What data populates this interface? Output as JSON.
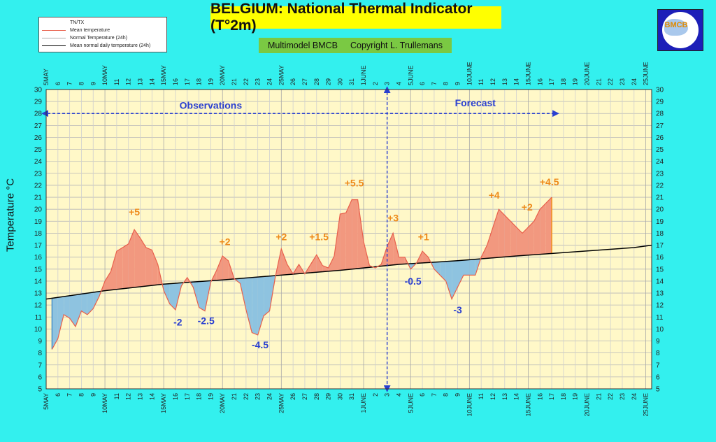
{
  "title": "BELGIUM: National Thermal Indicator (T°2m)",
  "subtitle": {
    "model": "Multimodel BMCB",
    "copyright": "Copyright L. Trullemans"
  },
  "legend": {
    "title": "TN/TX",
    "items": [
      {
        "label": "Mean temperature",
        "color": "#e8604c"
      },
      {
        "label": "Normal Temperature (24h)",
        "color": "#aaaaaa"
      },
      {
        "label": "Mean normal daily temperature (24h)",
        "color": "#000000"
      }
    ]
  },
  "logo": {
    "text": "BMCB"
  },
  "chart_data": {
    "type": "area",
    "ylabel": "Temperature °C",
    "ylim": [
      5,
      30
    ],
    "xlim": [
      5.0,
      56.5
    ],
    "grid": true,
    "x_tick_labels": [
      "5MAY",
      "6",
      "7",
      "8",
      "9",
      "10MAY",
      "11",
      "12",
      "13",
      "14",
      "15MAY",
      "16",
      "17",
      "18",
      "19",
      "20MAY",
      "21",
      "22",
      "23",
      "24",
      "25MAY",
      "26",
      "27",
      "28",
      "29",
      "30",
      "31",
      "1JUNE",
      "2",
      "3",
      "4",
      "5JUNE",
      "6",
      "7",
      "8",
      "9",
      "10JUNE",
      "11",
      "12",
      "13",
      "14",
      "15JUNE",
      "16",
      "17",
      "18",
      "19",
      "20JUNE",
      "21",
      "22",
      "23",
      "24",
      "25JUNE"
    ],
    "y_ticks": [
      5,
      6,
      7,
      8,
      9,
      10,
      11,
      12,
      13,
      14,
      15,
      16,
      17,
      18,
      19,
      20,
      21,
      22,
      23,
      24,
      25,
      26,
      27,
      28,
      29,
      30
    ],
    "series": [
      {
        "name": "Mean temperature",
        "color": "#e8604c",
        "points": [
          [
            5.5,
            8.3
          ],
          [
            6,
            9.2
          ],
          [
            6.5,
            11.2
          ],
          [
            7,
            10.9
          ],
          [
            7.5,
            10.2
          ],
          [
            8,
            11.5
          ],
          [
            8.5,
            11.2
          ],
          [
            9,
            11.7
          ],
          [
            9.5,
            12.7
          ],
          [
            10,
            14.0
          ],
          [
            10.5,
            14.8
          ],
          [
            11,
            16.5
          ],
          [
            11.5,
            16.8
          ],
          [
            12,
            17.1
          ],
          [
            12.5,
            18.3
          ],
          [
            13,
            17.6
          ],
          [
            13.5,
            16.8
          ],
          [
            14,
            16.6
          ],
          [
            14.5,
            15.4
          ],
          [
            15,
            13.2
          ],
          [
            15.5,
            12.1
          ],
          [
            16,
            11.6
          ],
          [
            16.5,
            13.6
          ],
          [
            17,
            14.3
          ],
          [
            17.5,
            13.5
          ],
          [
            18,
            11.8
          ],
          [
            18.5,
            11.5
          ],
          [
            19,
            13.9
          ],
          [
            19.5,
            14.9
          ],
          [
            20,
            16.1
          ],
          [
            20.5,
            15.7
          ],
          [
            21,
            14.2
          ],
          [
            21.5,
            13.8
          ],
          [
            22,
            11.6
          ],
          [
            22.5,
            9.7
          ],
          [
            23,
            9.5
          ],
          [
            23.5,
            11.1
          ],
          [
            24,
            11.5
          ],
          [
            24.5,
            14.4
          ],
          [
            25,
            16.7
          ],
          [
            25.5,
            15.4
          ],
          [
            26,
            14.6
          ],
          [
            26.5,
            15.4
          ],
          [
            27,
            14.6
          ],
          [
            27.5,
            15.4
          ],
          [
            28,
            16.2
          ],
          [
            28.5,
            15.3
          ],
          [
            29,
            15.1
          ],
          [
            29.5,
            16.1
          ],
          [
            30,
            19.6
          ],
          [
            30.5,
            19.7
          ],
          [
            31,
            20.8
          ],
          [
            31.5,
            20.8
          ],
          [
            32,
            17.3
          ],
          [
            32.5,
            15.3
          ],
          [
            33,
            15.1
          ],
          [
            33.5,
            15.4
          ],
          [
            34,
            16.9
          ],
          [
            34.5,
            18.0
          ],
          [
            35,
            16.0
          ],
          [
            35.5,
            16.0
          ],
          [
            36,
            15.0
          ],
          [
            36.5,
            15.5
          ],
          [
            37,
            16.5
          ],
          [
            37.5,
            16.0
          ],
          [
            38,
            15.0
          ],
          [
            38.5,
            14.5
          ],
          [
            39,
            14.0
          ],
          [
            39.5,
            12.5
          ],
          [
            40,
            13.5
          ],
          [
            40.5,
            14.5
          ],
          [
            41,
            14.5
          ],
          [
            41.5,
            14.5
          ],
          [
            42,
            16.0
          ],
          [
            42.5,
            17.0
          ],
          [
            43,
            18.5
          ],
          [
            43.5,
            20.0
          ],
          [
            44,
            19.5
          ],
          [
            44.5,
            19.0
          ],
          [
            45,
            18.5
          ],
          [
            45.5,
            18.0
          ],
          [
            46,
            18.5
          ],
          [
            46.5,
            19.0
          ],
          [
            47,
            20.0
          ],
          [
            47.5,
            20.5
          ],
          [
            48,
            21.0
          ]
        ]
      },
      {
        "name": "Mean normal daily temperature (24h)",
        "color": "#000000",
        "points": [
          [
            5,
            12.5
          ],
          [
            10,
            13.2
          ],
          [
            15,
            13.75
          ],
          [
            20,
            14.1
          ],
          [
            25,
            14.5
          ],
          [
            30,
            14.9
          ],
          [
            33,
            15.2
          ],
          [
            35,
            15.4
          ],
          [
            40,
            15.7
          ],
          [
            45,
            16.1
          ],
          [
            50,
            16.45
          ],
          [
            55,
            16.8
          ],
          [
            56.5,
            17.0
          ]
        ]
      }
    ],
    "annotations": [
      {
        "text": "+5",
        "x": 12.5,
        "y": 19.5,
        "color": "#ee8a1a"
      },
      {
        "text": "-2",
        "x": 16.2,
        "y": 10.3,
        "color": "#2a3fd0"
      },
      {
        "text": "-2.5",
        "x": 18.6,
        "y": 10.4,
        "color": "#2a3fd0"
      },
      {
        "text": "+2",
        "x": 20.2,
        "y": 17.0,
        "color": "#ee8a1a"
      },
      {
        "text": "-4.5",
        "x": 23.2,
        "y": 8.4,
        "color": "#2a3fd0"
      },
      {
        "text": "+2",
        "x": 25.0,
        "y": 17.4,
        "color": "#ee8a1a"
      },
      {
        "text": "+1.5",
        "x": 28.2,
        "y": 17.4,
        "color": "#ee8a1a"
      },
      {
        "text": "+5.5",
        "x": 31.2,
        "y": 21.9,
        "color": "#ee8a1a"
      },
      {
        "text": "+3",
        "x": 34.5,
        "y": 19.0,
        "color": "#ee8a1a"
      },
      {
        "text": "+1",
        "x": 37.1,
        "y": 17.4,
        "color": "#ee8a1a"
      },
      {
        "text": "-0.5",
        "x": 36.2,
        "y": 13.7,
        "color": "#2a3fd0"
      },
      {
        "text": "-3",
        "x": 40.0,
        "y": 11.3,
        "color": "#2a3fd0"
      },
      {
        "text": "+4",
        "x": 43.1,
        "y": 20.9,
        "color": "#ee8a1a"
      },
      {
        "text": "+2",
        "x": 45.9,
        "y": 19.9,
        "color": "#ee8a1a"
      },
      {
        "text": "+4.5",
        "x": 47.8,
        "y": 22.0,
        "color": "#ee8a1a"
      }
    ],
    "regions": [
      {
        "label": "Observations",
        "x": 19.0,
        "y": 28.4,
        "color": "#2a3fd0"
      },
      {
        "label": "Forecast",
        "x": 41.5,
        "y": 28.6,
        "color": "#2a3fd0"
      }
    ],
    "divider_x": 34.0,
    "arrow_span": [
      5.0,
      48.0
    ]
  }
}
